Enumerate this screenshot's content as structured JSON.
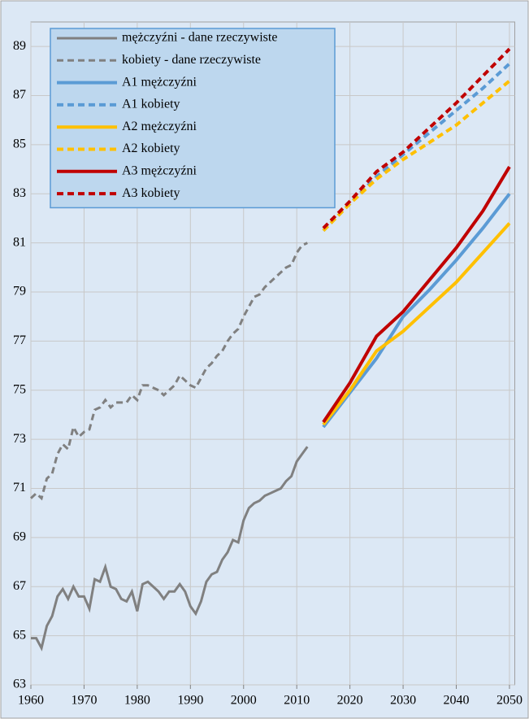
{
  "chart_data": {
    "type": "line",
    "x": [
      1960,
      1961,
      1962,
      1963,
      1964,
      1965,
      1966,
      1967,
      1968,
      1969,
      1970,
      1971,
      1972,
      1973,
      1974,
      1975,
      1976,
      1977,
      1978,
      1979,
      1980,
      1981,
      1982,
      1983,
      1984,
      1985,
      1986,
      1987,
      1988,
      1989,
      1990,
      1991,
      1992,
      1993,
      1994,
      1995,
      1996,
      1997,
      1998,
      1999,
      2000,
      2001,
      2002,
      2003,
      2004,
      2005,
      2006,
      2007,
      2008,
      2009,
      2010,
      2011,
      2012,
      2015,
      2020,
      2025,
      2030,
      2035,
      2040,
      2045,
      2050
    ],
    "series": [
      {
        "name": "mężczyźni - dane rzeczywiste",
        "color": "#808080",
        "dash": false,
        "values": [
          64.9,
          64.9,
          64.5,
          65.4,
          65.8,
          66.6,
          66.9,
          66.5,
          67.0,
          66.6,
          66.6,
          66.1,
          67.3,
          67.2,
          67.8,
          67.0,
          66.9,
          66.5,
          66.4,
          66.8,
          66.0,
          67.1,
          67.2,
          67.0,
          66.8,
          66.5,
          66.8,
          66.8,
          67.1,
          66.8,
          66.2,
          65.9,
          66.4,
          67.2,
          67.5,
          67.6,
          68.1,
          68.4,
          68.9,
          68.8,
          69.7,
          70.2,
          70.4,
          70.5,
          70.7,
          70.8,
          70.9,
          71.0,
          71.3,
          71.5,
          72.1,
          72.4,
          72.7,
          null,
          null,
          null,
          null,
          null,
          null,
          null,
          null
        ]
      },
      {
        "name": "kobiety - dane rzeczywiste",
        "color": "#808080",
        "dash": true,
        "values": [
          70.6,
          70.8,
          70.6,
          71.4,
          71.6,
          72.4,
          72.8,
          72.6,
          73.5,
          73.1,
          73.3,
          73.4,
          74.2,
          74.3,
          74.6,
          74.3,
          74.5,
          74.5,
          74.5,
          74.8,
          74.6,
          75.2,
          75.2,
          75.1,
          75.0,
          74.8,
          75.0,
          75.2,
          75.6,
          75.4,
          75.2,
          75.1,
          75.5,
          75.9,
          76.1,
          76.4,
          76.6,
          77.0,
          77.3,
          77.5,
          78.0,
          78.4,
          78.8,
          78.9,
          79.2,
          79.4,
          79.6,
          79.8,
          80.0,
          80.1,
          80.6,
          80.9,
          81.0,
          null,
          null,
          null,
          null,
          null,
          null,
          null,
          null
        ]
      },
      {
        "name": "A1 mężczyźni",
        "color": "#5b9bd5",
        "dash": false,
        "values": [
          null,
          null,
          null,
          null,
          null,
          null,
          null,
          null,
          null,
          null,
          null,
          null,
          null,
          null,
          null,
          null,
          null,
          null,
          null,
          null,
          null,
          null,
          null,
          null,
          null,
          null,
          null,
          null,
          null,
          null,
          null,
          null,
          null,
          null,
          null,
          null,
          null,
          null,
          null,
          null,
          null,
          null,
          null,
          null,
          null,
          null,
          null,
          null,
          null,
          null,
          null,
          null,
          null,
          73.5,
          74.9,
          76.3,
          78.0,
          79.1,
          80.3,
          81.6,
          83.0
        ]
      },
      {
        "name": "A1 kobiety",
        "color": "#5b9bd5",
        "dash": true,
        "values": [
          null,
          null,
          null,
          null,
          null,
          null,
          null,
          null,
          null,
          null,
          null,
          null,
          null,
          null,
          null,
          null,
          null,
          null,
          null,
          null,
          null,
          null,
          null,
          null,
          null,
          null,
          null,
          null,
          null,
          null,
          null,
          null,
          null,
          null,
          null,
          null,
          null,
          null,
          null,
          null,
          null,
          null,
          null,
          null,
          null,
          null,
          null,
          null,
          null,
          null,
          null,
          null,
          null,
          81.5,
          82.6,
          83.7,
          84.6,
          85.5,
          86.4,
          87.3,
          88.3
        ]
      },
      {
        "name": "A2 mężczyźni",
        "color": "#ffc000",
        "dash": false,
        "values": [
          null,
          null,
          null,
          null,
          null,
          null,
          null,
          null,
          null,
          null,
          null,
          null,
          null,
          null,
          null,
          null,
          null,
          null,
          null,
          null,
          null,
          null,
          null,
          null,
          null,
          null,
          null,
          null,
          null,
          null,
          null,
          null,
          null,
          null,
          null,
          null,
          null,
          null,
          null,
          null,
          null,
          null,
          null,
          null,
          null,
          null,
          null,
          null,
          null,
          null,
          null,
          null,
          null,
          73.6,
          75.0,
          76.6,
          77.4,
          78.4,
          79.4,
          80.6,
          81.8
        ]
      },
      {
        "name": "A2 kobiety",
        "color": "#ffc000",
        "dash": true,
        "values": [
          null,
          null,
          null,
          null,
          null,
          null,
          null,
          null,
          null,
          null,
          null,
          null,
          null,
          null,
          null,
          null,
          null,
          null,
          null,
          null,
          null,
          null,
          null,
          null,
          null,
          null,
          null,
          null,
          null,
          null,
          null,
          null,
          null,
          null,
          null,
          null,
          null,
          null,
          null,
          null,
          null,
          null,
          null,
          null,
          null,
          null,
          null,
          null,
          null,
          null,
          null,
          null,
          null,
          81.5,
          82.6,
          83.6,
          84.4,
          85.1,
          85.8,
          86.7,
          87.6
        ]
      },
      {
        "name": "A3 mężczyźni",
        "color": "#c00000",
        "dash": false,
        "values": [
          null,
          null,
          null,
          null,
          null,
          null,
          null,
          null,
          null,
          null,
          null,
          null,
          null,
          null,
          null,
          null,
          null,
          null,
          null,
          null,
          null,
          null,
          null,
          null,
          null,
          null,
          null,
          null,
          null,
          null,
          null,
          null,
          null,
          null,
          null,
          null,
          null,
          null,
          null,
          null,
          null,
          null,
          null,
          null,
          null,
          null,
          null,
          null,
          null,
          null,
          null,
          null,
          null,
          73.7,
          75.3,
          77.2,
          78.2,
          79.5,
          80.8,
          82.3,
          84.1
        ]
      },
      {
        "name": "A3 kobiety",
        "color": "#c00000",
        "dash": true,
        "values": [
          null,
          null,
          null,
          null,
          null,
          null,
          null,
          null,
          null,
          null,
          null,
          null,
          null,
          null,
          null,
          null,
          null,
          null,
          null,
          null,
          null,
          null,
          null,
          null,
          null,
          null,
          null,
          null,
          null,
          null,
          null,
          null,
          null,
          null,
          null,
          null,
          null,
          null,
          null,
          null,
          null,
          null,
          null,
          null,
          null,
          null,
          null,
          null,
          null,
          null,
          null,
          null,
          null,
          81.6,
          82.7,
          83.9,
          84.7,
          85.7,
          86.7,
          87.8,
          88.9
        ]
      }
    ],
    "xlim": [
      1960,
      2051
    ],
    "xticks": [
      1960,
      1970,
      1980,
      1990,
      2000,
      2010,
      2020,
      2030,
      2040,
      2050
    ],
    "ylim": [
      63,
      90
    ],
    "yticks": [
      63,
      65,
      67,
      69,
      71,
      73,
      75,
      77,
      79,
      81,
      83,
      85,
      87,
      89
    ],
    "grid": true,
    "legend": "top-left"
  }
}
